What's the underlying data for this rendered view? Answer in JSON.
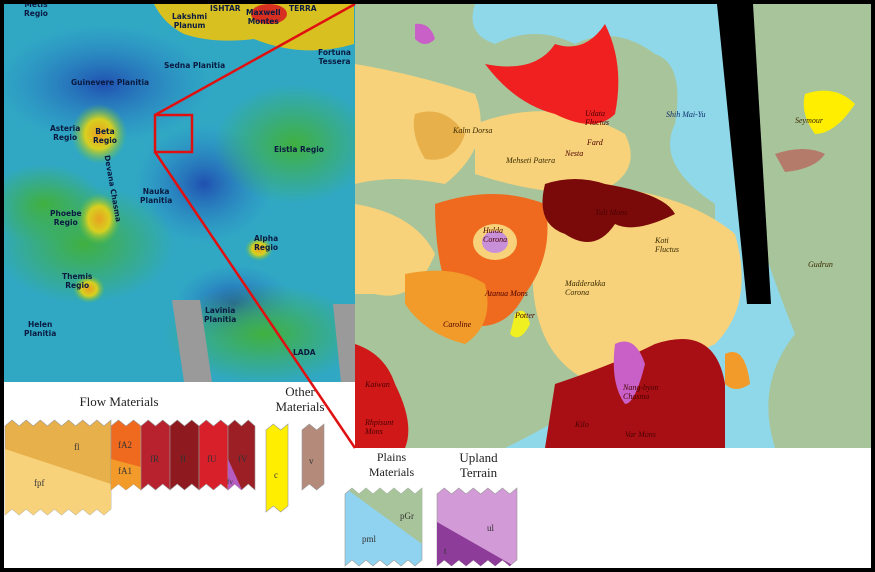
{
  "left_map": {
    "labels": {
      "metis_regio": "Metis\nRegio",
      "lakshmi_planum": "Lakshmi\nPlanum",
      "ishtar": "ISHTAR",
      "maxwell_montes": "Maxwell\nMontes",
      "terra": "TERRA",
      "fortuna_tessera": "Fortuna\nTessera",
      "sedna_planitia": "Sedna Planitia",
      "guinevere_planitia": "Guinevere Planitia",
      "asteria_regio": "Asteria\nRegio",
      "beta_regio": "Beta\nRegio",
      "devana_chasma": "Devana Chasma",
      "eistla_regio": "Eistla Regio",
      "nauka_planitia": "Nauka\nPlanitia",
      "phoebe_regio": "Phoebe\nRegio",
      "alpha_regio": "Alpha\nRegio",
      "themis_regio": "Themis\nRegio",
      "lavinia_planitia": "Lavinia\nPlanitia",
      "helen_planitia": "Helen\nPlanitia",
      "lada": "LADA"
    }
  },
  "right_map": {
    "labels": {
      "kalm_dorsa": "Kalm Dorsa",
      "mehseti_patera": "Mehseti Patera",
      "udata_fluctus": "Udata\nFluctus",
      "fard": "Fard",
      "nesta": "Nesta",
      "shih_mai_yu": "Shih Mai-Yu",
      "seymour": "Seymour",
      "tuli_mons": "Tuli Mons",
      "hulda_corona": "Hulda\nCorona",
      "koti_fluctus": "Koti\nFluctus",
      "gudrun": "Gudrun",
      "atanua_mons": "Atanua Mons",
      "madderakka_corona": "Madderakka\nCorona",
      "potter": "Potter",
      "caroline": "Caroline",
      "kaiwan": "Kaiwan",
      "rhpisunt_mons": "Rhpisunt\nMons",
      "nang_byon_chasma": "Nang-byon\nChasma",
      "kilo": "Kilo",
      "var_mons": "Var Mons"
    }
  },
  "legend": {
    "flow_title": "Flow Materials",
    "other_title": "Other\nMaterials",
    "plains_title": "Plains\nMaterials",
    "upland_title": "Upland\nTerrain",
    "units": {
      "fl": {
        "code": "fl",
        "color": "#e8b04a"
      },
      "fpf": {
        "code": "fpf",
        "color": "#f7d27a"
      },
      "fA2": {
        "code": "fA2",
        "color": "#ef6a1e"
      },
      "fA1": {
        "code": "fA1",
        "color": "#f29a2a"
      },
      "fR": {
        "code": "fR",
        "color": "#b8222e"
      },
      "fI": {
        "code": "fI",
        "color": "#8e1a1f"
      },
      "fU": {
        "code": "fU",
        "color": "#d8202a"
      },
      "fV": {
        "code": "fV",
        "color": "#9c1f26"
      },
      "fV_sub": {
        "code": "fv",
        "color": "#b45cc0"
      },
      "c": {
        "code": "c",
        "color": "#ffee00"
      },
      "v": {
        "code": "v",
        "color": "#b48a7a"
      },
      "pml": {
        "code": "pml",
        "color": "#8fd3f0"
      },
      "pGr": {
        "code": "pGr",
        "color": "#a8c49a"
      },
      "ul": {
        "code": "ul",
        "color": "#d29ad6"
      },
      "t": {
        "code": "t",
        "color": "#8e3c9a"
      }
    }
  },
  "colors": {
    "callout_line": "#e01010",
    "plains": "#a8c49a",
    "lowland": "#8fd8ea"
  }
}
